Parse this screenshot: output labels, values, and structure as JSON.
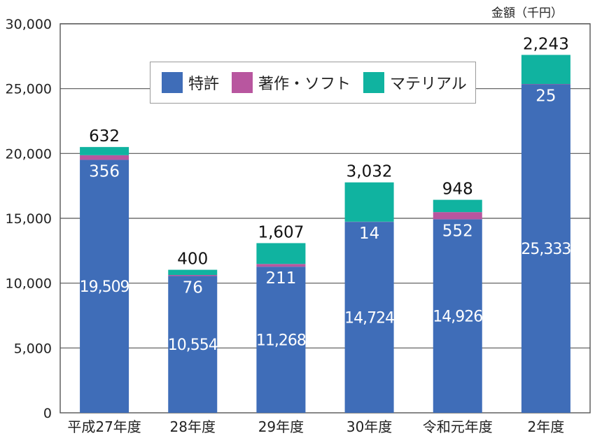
{
  "chart_data": {
    "type": "bar",
    "stacked": true,
    "unit_label": "金額（千円）",
    "categories": [
      "平成27年度",
      "28年度",
      "29年度",
      "30年度",
      "令和元年度",
      "2年度"
    ],
    "series": [
      {
        "name": "特許",
        "color": "#3f6db8",
        "values": [
          19509,
          10554,
          11268,
          14724,
          14926,
          25333
        ],
        "labels": [
          "19,509",
          "10,554",
          "11,268",
          "14,724",
          "14,926",
          "25,333"
        ]
      },
      {
        "name": "著作・ソフト",
        "color": "#b8569f",
        "values": [
          356,
          76,
          211,
          14,
          552,
          25
        ],
        "labels": [
          "356",
          "76",
          "211",
          "14",
          "552",
          "25"
        ]
      },
      {
        "name": "マテリアル",
        "color": "#10b3a0",
        "values": [
          632,
          400,
          1607,
          3032,
          948,
          2243
        ],
        "labels": [
          "632",
          "400",
          "1,607",
          "3,032",
          "948",
          "2,243"
        ]
      }
    ],
    "ylim": [
      0,
      30000
    ],
    "yticks": [
      0,
      5000,
      10000,
      15000,
      20000,
      25000,
      30000
    ],
    "ytick_labels": [
      "0",
      "5,000",
      "10,000",
      "15,000",
      "20,000",
      "25,000",
      "30,000"
    ],
    "grid": true,
    "legend_position": "top-center"
  }
}
